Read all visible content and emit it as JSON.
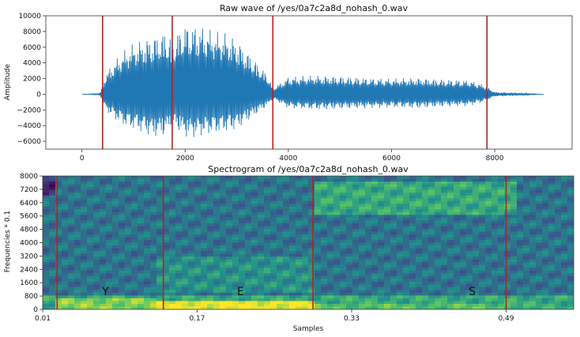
{
  "chart_data": [
    {
      "type": "line",
      "title": "Raw wave of /yes/0a7c2a8d_nohash_0.wav",
      "xlabel": "",
      "ylabel": "Amplitude",
      "xlim": [
        -700,
        9500
      ],
      "ylim": [
        -7000,
        10000
      ],
      "x_ticks": [
        0,
        2000,
        4000,
        6000,
        8000
      ],
      "x_tick_labels": [
        "0",
        "2000",
        "4000",
        "6000",
        "8000"
      ],
      "y_ticks": [
        -6000,
        -4000,
        -2000,
        0,
        2000,
        4000,
        6000,
        8000,
        10000
      ],
      "y_tick_labels": [
        "−6000",
        "−4000",
        "−2000",
        "0",
        "2000",
        "4000",
        "6000",
        "8000",
        "10000"
      ],
      "grid": false,
      "series": [
        {
          "color": "#1f77b4",
          "envelope": {
            "x": [
              0,
              350,
              450,
              600,
              800,
              1000,
              1200,
              1400,
              1600,
              1750,
              2000,
              2200,
              2400,
              2600,
              2800,
              3000,
              3200,
              3400,
              3600,
              3700,
              4000,
              4500,
              5000,
              5500,
              6000,
              6500,
              7000,
              7500,
              7800,
              8000,
              8500,
              8950
            ],
            "upper": [
              0,
              100,
              2500,
              4000,
              5500,
              6500,
              7000,
              7500,
              8000,
              7200,
              9000,
              8800,
              8500,
              8000,
              7800,
              7000,
              5500,
              4000,
              2500,
              800,
              2200,
              2400,
              2300,
              2100,
              2000,
              2100,
              1900,
              1800,
              1200,
              300,
              150,
              0
            ],
            "lower": [
              0,
              -100,
              -2000,
              -3000,
              -4000,
              -4500,
              -5000,
              -5500,
              -5300,
              -4000,
              -5500,
              -5500,
              -5200,
              -5000,
              -4800,
              -4500,
              -3500,
              -2500,
              -1500,
              -600,
              -1800,
              -2000,
              -1900,
              -1800,
              -1700,
              -1800,
              -1600,
              -1500,
              -1000,
              -300,
              -150,
              0
            ]
          }
        }
      ],
      "vertical_lines": {
        "x": [
          400,
          1750,
          3700,
          7850
        ],
        "color": "#b22222"
      }
    },
    {
      "type": "heatmap",
      "title": "Spectrogram of /yes/0a7c2a8d_nohash_0.wav",
      "xlabel": "Samples",
      "ylabel": "Frequencies * 0.1",
      "xlim": [
        0.01,
        0.56
      ],
      "ylim": [
        0,
        8000
      ],
      "x_ticks": [
        0.01,
        0.17,
        0.33,
        0.49
      ],
      "x_tick_labels": [
        "0.01",
        "0.17",
        "0.33",
        "0.49"
      ],
      "y_ticks": [
        0,
        800,
        1600,
        2400,
        3200,
        4000,
        4800,
        5600,
        6400,
        7200,
        8000
      ],
      "y_tick_labels": [
        "0",
        "800",
        "1600",
        "2400",
        "3200",
        "4000",
        "4800",
        "5600",
        "6400",
        "7200",
        "8000"
      ],
      "colormap": "viridis",
      "vertical_lines": {
        "x": [
          0.025,
          0.135,
          0.29,
          0.49
        ],
        "color": "#b22222"
      },
      "annotations": [
        {
          "text": "Y",
          "x": 0.075,
          "y": 1100
        },
        {
          "text": "E",
          "x": 0.215,
          "y": 1100
        },
        {
          "text": "S",
          "x": 0.455,
          "y": 1100
        }
      ]
    }
  ]
}
